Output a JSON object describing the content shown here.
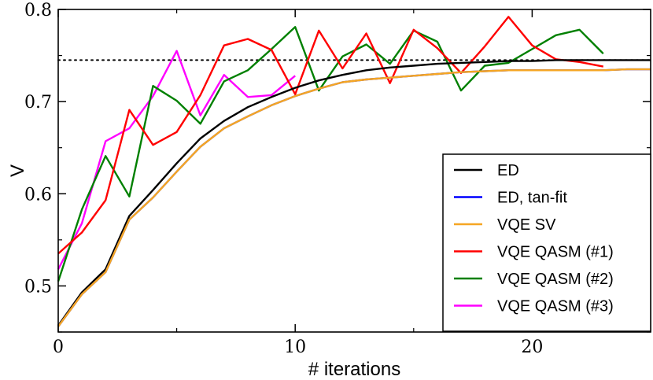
{
  "chart_data": {
    "type": "line",
    "xlabel": "# iterations",
    "ylabel": "V",
    "xlim": [
      0,
      25
    ],
    "ylim": [
      0.45,
      0.8
    ],
    "xticks": [
      0,
      10,
      20
    ],
    "yticks": [
      0.5,
      0.6,
      0.7,
      0.8
    ],
    "xtick_labels": [
      "0",
      "10",
      "20"
    ],
    "ytick_labels": [
      "0.5",
      "0.6",
      "0.7",
      "0.8"
    ],
    "grid": false,
    "legend_position": "bottom-right",
    "reference_line": {
      "y": 0.745,
      "style": "dotted",
      "color": "#000000"
    },
    "series": [
      {
        "name": "ED",
        "color": "#000000",
        "x": [
          0,
          1,
          2,
          3,
          4,
          5,
          6,
          7,
          8,
          9,
          10,
          11,
          12,
          13,
          14,
          15,
          16,
          17,
          18,
          19,
          20,
          21,
          22,
          23,
          24,
          25
        ],
        "y": [
          0.457,
          0.493,
          0.518,
          0.576,
          0.604,
          0.633,
          0.66,
          0.679,
          0.694,
          0.705,
          0.715,
          0.723,
          0.729,
          0.734,
          0.737,
          0.739,
          0.741,
          0.742,
          0.743,
          0.744,
          0.744,
          0.745,
          0.745,
          0.745,
          0.745,
          0.745
        ]
      },
      {
        "name": "ED, tan-fit",
        "color": "#0000ff",
        "x": [
          0,
          1,
          2,
          3,
          4,
          5,
          6,
          7,
          8,
          9,
          10,
          11,
          12,
          13,
          14,
          15,
          16,
          17,
          18,
          19,
          20,
          21,
          22,
          23,
          24,
          25
        ],
        "y": [
          0.456,
          0.491,
          0.515,
          0.572,
          0.596,
          0.624,
          0.651,
          0.671,
          0.684,
          0.696,
          0.706,
          0.714,
          0.721,
          0.724,
          0.726,
          0.728,
          0.73,
          0.732,
          0.733,
          0.734,
          0.734,
          0.734,
          0.734,
          0.734,
          0.735,
          0.735
        ]
      },
      {
        "name": "VQE SV",
        "color": "#f5a623",
        "x": [
          0,
          1,
          2,
          3,
          4,
          5,
          6,
          7,
          8,
          9,
          10,
          11,
          12,
          13,
          14,
          15,
          16,
          17,
          18,
          19,
          20,
          21,
          22,
          23,
          24,
          25
        ],
        "y": [
          0.456,
          0.491,
          0.515,
          0.572,
          0.596,
          0.624,
          0.651,
          0.671,
          0.684,
          0.696,
          0.706,
          0.714,
          0.721,
          0.724,
          0.726,
          0.728,
          0.73,
          0.732,
          0.733,
          0.734,
          0.734,
          0.734,
          0.734,
          0.734,
          0.735,
          0.735
        ]
      },
      {
        "name": "VQE QASM (#1)",
        "color": "#ff0000",
        "x": [
          0,
          1,
          2,
          3,
          4,
          5,
          6,
          7,
          8,
          9,
          10,
          11,
          12,
          13,
          14,
          15,
          16,
          17,
          18,
          19,
          20,
          21,
          22,
          23
        ],
        "y": [
          0.535,
          0.558,
          0.593,
          0.691,
          0.653,
          0.667,
          0.707,
          0.761,
          0.768,
          0.756,
          0.708,
          0.777,
          0.736,
          0.774,
          0.72,
          0.778,
          0.758,
          0.731,
          0.76,
          0.792,
          0.761,
          0.746,
          0.743,
          0.738
        ]
      },
      {
        "name": "VQE QASM (#2)",
        "color": "#008000",
        "x": [
          0,
          1,
          2,
          3,
          4,
          5,
          6,
          7,
          8,
          9,
          10,
          11,
          12,
          13,
          14,
          15,
          16,
          17,
          18,
          19,
          20,
          21,
          22,
          23
        ],
        "y": [
          0.505,
          0.583,
          0.641,
          0.597,
          0.717,
          0.701,
          0.676,
          0.722,
          0.734,
          0.757,
          0.781,
          0.712,
          0.749,
          0.762,
          0.741,
          0.777,
          0.765,
          0.712,
          0.739,
          0.742,
          0.757,
          0.772,
          0.778,
          0.752
        ]
      },
      {
        "name": "VQE QASM (#3)",
        "color": "#ff00ff",
        "x": [
          0,
          1,
          2,
          3,
          4,
          5,
          6,
          7,
          8,
          9,
          10
        ],
        "y": [
          0.518,
          0.568,
          0.657,
          0.671,
          0.706,
          0.755,
          0.685,
          0.729,
          0.705,
          0.707,
          0.728
        ]
      }
    ]
  }
}
